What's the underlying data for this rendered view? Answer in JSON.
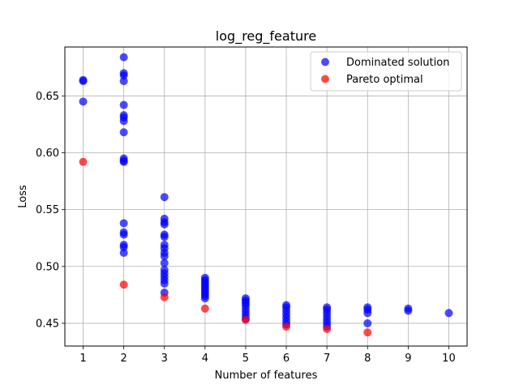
{
  "chart_data": {
    "type": "scatter",
    "title": "log_reg_feature",
    "xlabel": "Number of features",
    "ylabel": "Loss",
    "xlim": [
      0.55,
      10.45
    ],
    "ylim": [
      0.43,
      0.693
    ],
    "xticks": [
      1,
      2,
      3,
      4,
      5,
      6,
      7,
      8,
      9,
      10
    ],
    "yticks": [
      0.45,
      0.5,
      0.55,
      0.6,
      0.65
    ],
    "ytick_labels": [
      "0.45",
      "0.50",
      "0.55",
      "0.60",
      "0.65"
    ],
    "grid": true,
    "legend_position": "top-right",
    "series": [
      {
        "name": "Dominated solution",
        "color": "#0000ff",
        "points": [
          [
            1,
            0.664
          ],
          [
            1,
            0.663
          ],
          [
            1,
            0.645
          ],
          [
            2,
            0.684
          ],
          [
            2,
            0.67
          ],
          [
            2,
            0.668
          ],
          [
            2,
            0.663
          ],
          [
            2,
            0.642
          ],
          [
            2,
            0.633
          ],
          [
            2,
            0.631
          ],
          [
            2,
            0.628
          ],
          [
            2,
            0.618
          ],
          [
            2,
            0.595
          ],
          [
            2,
            0.593
          ],
          [
            2,
            0.592
          ],
          [
            2,
            0.538
          ],
          [
            2,
            0.53
          ],
          [
            2,
            0.528
          ],
          [
            2,
            0.519
          ],
          [
            2,
            0.517
          ],
          [
            2,
            0.512
          ],
          [
            3,
            0.561
          ],
          [
            3,
            0.542
          ],
          [
            3,
            0.539
          ],
          [
            3,
            0.537
          ],
          [
            3,
            0.528
          ],
          [
            3,
            0.526
          ],
          [
            3,
            0.519
          ],
          [
            3,
            0.516
          ],
          [
            3,
            0.512
          ],
          [
            3,
            0.509
          ],
          [
            3,
            0.503
          ],
          [
            3,
            0.497
          ],
          [
            3,
            0.494
          ],
          [
            3,
            0.491
          ],
          [
            3,
            0.488
          ],
          [
            3,
            0.485
          ],
          [
            3,
            0.477
          ],
          [
            4,
            0.49
          ],
          [
            4,
            0.488
          ],
          [
            4,
            0.486
          ],
          [
            4,
            0.484
          ],
          [
            4,
            0.482
          ],
          [
            4,
            0.48
          ],
          [
            4,
            0.478
          ],
          [
            4,
            0.476
          ],
          [
            4,
            0.474
          ],
          [
            4,
            0.472
          ],
          [
            5,
            0.472
          ],
          [
            5,
            0.47
          ],
          [
            5,
            0.468
          ],
          [
            5,
            0.466
          ],
          [
            5,
            0.463
          ],
          [
            5,
            0.46
          ],
          [
            5,
            0.457
          ],
          [
            5,
            0.454
          ],
          [
            6,
            0.466
          ],
          [
            6,
            0.464
          ],
          [
            6,
            0.461
          ],
          [
            6,
            0.458
          ],
          [
            6,
            0.455
          ],
          [
            6,
            0.452
          ],
          [
            6,
            0.449
          ],
          [
            7,
            0.464
          ],
          [
            7,
            0.462
          ],
          [
            7,
            0.459
          ],
          [
            7,
            0.456
          ],
          [
            7,
            0.453
          ],
          [
            7,
            0.45
          ],
          [
            7,
            0.447
          ],
          [
            8,
            0.464
          ],
          [
            8,
            0.462
          ],
          [
            8,
            0.459
          ],
          [
            8,
            0.45
          ],
          [
            9,
            0.463
          ],
          [
            9,
            0.461
          ],
          [
            10,
            0.459
          ]
        ]
      },
      {
        "name": "Pareto optimal",
        "color": "#ff0000",
        "points": [
          [
            1,
            0.592
          ],
          [
            2,
            0.484
          ],
          [
            3,
            0.473
          ],
          [
            4,
            0.463
          ],
          [
            5,
            0.453
          ],
          [
            6,
            0.447
          ],
          [
            7,
            0.445
          ],
          [
            8,
            0.442
          ]
        ]
      }
    ]
  }
}
